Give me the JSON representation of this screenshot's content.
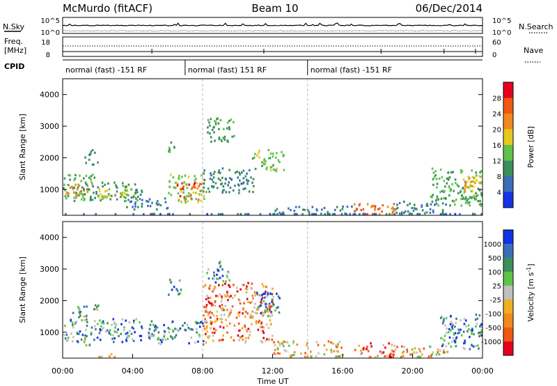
{
  "header": {
    "station": "McMurdo (fitACF)",
    "beam": "Beam 10",
    "date": "06/Dec/2014"
  },
  "top_panels": {
    "nsky_label": "N.Sky",
    "nsky_ticks": [
      "10^5",
      "10^0"
    ],
    "nsearch_label": "N.Search",
    "nsearch_ticks": [
      "10^5",
      "10^0"
    ],
    "freq_label": "Freq.",
    "freq_unit": "[MHz]",
    "freq_ticks": [
      "18",
      "8"
    ],
    "nave_label": "Nave",
    "nave_ticks": [
      "60",
      "0"
    ],
    "cpid_label": "CPID",
    "cpid_segments": [
      {
        "start": 0,
        "end": 7,
        "label": "normal (fast) -151 RF"
      },
      {
        "start": 7,
        "end": 14,
        "label": "normal (fast) 151 RF"
      },
      {
        "start": 14,
        "end": 24,
        "label": "normal (fast) -151 RF"
      }
    ]
  },
  "chart_data": [
    {
      "type": "heatmap",
      "name": "power-panel",
      "ylabel": "Slant Range [km]",
      "y_ticks": [
        1000,
        2000,
        3000,
        4000
      ],
      "y_ticklabels": [
        "1000",
        "2000",
        "3000",
        "4000"
      ],
      "ylim": [
        180,
        4500
      ],
      "xlim": [
        0,
        24
      ],
      "colorbar": {
        "label": "Power [dB]",
        "tick_values": [
          4,
          8,
          12,
          16,
          20,
          24,
          28
        ],
        "tick_labels": [
          "4",
          "8",
          "12",
          "16",
          "20",
          "24",
          "28"
        ],
        "range": [
          0,
          32
        ],
        "colors": [
          "#1432e6",
          "#3a6fb8",
          "#3c8f5a",
          "#5fc34a",
          "#e6c820",
          "#f08a1e",
          "#ee5a14",
          "#e6001e"
        ]
      },
      "blobs": [
        {
          "t0": 0.0,
          "t1": 1.8,
          "r0": 650,
          "r1": 1500,
          "v": 12
        },
        {
          "t0": 0.1,
          "t1": 1.5,
          "r0": 820,
          "r1": 1200,
          "v": 22
        },
        {
          "t0": 1.2,
          "t1": 4.5,
          "r0": 650,
          "r1": 1250,
          "v": 10
        },
        {
          "t0": 2.0,
          "t1": 4.2,
          "r0": 760,
          "r1": 1050,
          "v": 18
        },
        {
          "t0": 3.5,
          "t1": 6.0,
          "r0": 400,
          "r1": 800,
          "v": 8
        },
        {
          "t0": 6.0,
          "t1": 8.2,
          "r0": 600,
          "r1": 1500,
          "v": 15
        },
        {
          "t0": 6.5,
          "t1": 7.9,
          "r0": 700,
          "r1": 1250,
          "v": 26
        },
        {
          "t0": 8.2,
          "t1": 9.8,
          "r0": 2500,
          "r1": 3300,
          "v": 11
        },
        {
          "t0": 8.0,
          "t1": 11.0,
          "r0": 900,
          "r1": 1700,
          "v": 9
        },
        {
          "t0": 10.8,
          "t1": 12.6,
          "r0": 1600,
          "r1": 2300,
          "v": 14
        },
        {
          "t0": 6.0,
          "t1": 6.6,
          "r0": 2200,
          "r1": 2600,
          "v": 13
        },
        {
          "t0": 1.2,
          "t1": 2.0,
          "r0": 1800,
          "r1": 2300,
          "v": 9
        },
        {
          "t0": 12.0,
          "t1": 17.0,
          "r0": 200,
          "r1": 500,
          "v": 7
        },
        {
          "t0": 16.6,
          "t1": 19.0,
          "r0": 200,
          "r1": 600,
          "v": 25
        },
        {
          "t0": 19.0,
          "t1": 22.0,
          "r0": 200,
          "r1": 650,
          "v": 8
        },
        {
          "t0": 21.0,
          "t1": 24.0,
          "r0": 500,
          "r1": 1700,
          "v": 12
        },
        {
          "t0": 22.8,
          "t1": 24.0,
          "r0": 800,
          "r1": 1500,
          "v": 19
        },
        {
          "t0": 0.0,
          "t1": 24.0,
          "r0": 180,
          "r1": 260,
          "v": 6
        }
      ]
    },
    {
      "type": "heatmap",
      "name": "velocity-panel",
      "ylabel": "Slant Range [km]",
      "y_ticks": [
        1000,
        2000,
        3000,
        4000
      ],
      "y_ticklabels": [
        "1000",
        "2000",
        "3000",
        "4000"
      ],
      "ylim": [
        180,
        4500
      ],
      "xlim": [
        0,
        24
      ],
      "x_ticks": [
        0,
        4,
        8,
        12,
        16,
        20,
        24
      ],
      "x_ticklabels": [
        "00:00",
        "04:00",
        "08:00",
        "12:00",
        "16:00",
        "20:00",
        "00:00"
      ],
      "xlabel": "Time UT",
      "colorbar": {
        "label": "Velocity [m s^-1]",
        "tick_labels": [
          "-1000",
          "-500",
          "-100",
          "-25",
          "25",
          "100",
          "500",
          "1000"
        ],
        "colors": [
          "#e6001e",
          "#ee5a14",
          "#f08a1e",
          "#f0b020",
          "#c0c0c0",
          "#5fc34a",
          "#3c8f5a",
          "#3a6fb8",
          "#1432e6"
        ]
      },
      "blobs": [
        {
          "t0": 0.0,
          "t1": 4.5,
          "r0": 700,
          "r1": 1450,
          "v": 6
        },
        {
          "t0": 0.5,
          "t1": 2.0,
          "r0": 1500,
          "r1": 1900,
          "v": 5
        },
        {
          "t0": 4.8,
          "t1": 8.0,
          "r0": 650,
          "r1": 1400,
          "v": 6
        },
        {
          "t0": 6.0,
          "t1": 6.8,
          "r0": 2200,
          "r1": 2700,
          "v": 6
        },
        {
          "t0": 8.0,
          "t1": 12.0,
          "r0": 700,
          "r1": 2600,
          "v": 2
        },
        {
          "t0": 8.2,
          "t1": 9.5,
          "r0": 2600,
          "r1": 3300,
          "v": 6
        },
        {
          "t0": 10.8,
          "t1": 12.4,
          "r0": 1500,
          "r1": 2300,
          "v": 6
        },
        {
          "t0": 12.0,
          "t1": 16.0,
          "r0": 250,
          "r1": 750,
          "v": 3
        },
        {
          "t0": 16.5,
          "t1": 19.0,
          "r0": 200,
          "r1": 700,
          "v": 2
        },
        {
          "t0": 19.0,
          "t1": 22.0,
          "r0": 200,
          "r1": 600,
          "v": 3
        },
        {
          "t0": 21.5,
          "t1": 24.0,
          "r0": 500,
          "r1": 1600,
          "v": 6
        },
        {
          "t0": 2.0,
          "t1": 3.5,
          "r0": 200,
          "r1": 350,
          "v": 4
        },
        {
          "t0": 1.0,
          "t1": 1.8,
          "r0": 600,
          "r1": 800,
          "v": 4
        }
      ]
    }
  ]
}
